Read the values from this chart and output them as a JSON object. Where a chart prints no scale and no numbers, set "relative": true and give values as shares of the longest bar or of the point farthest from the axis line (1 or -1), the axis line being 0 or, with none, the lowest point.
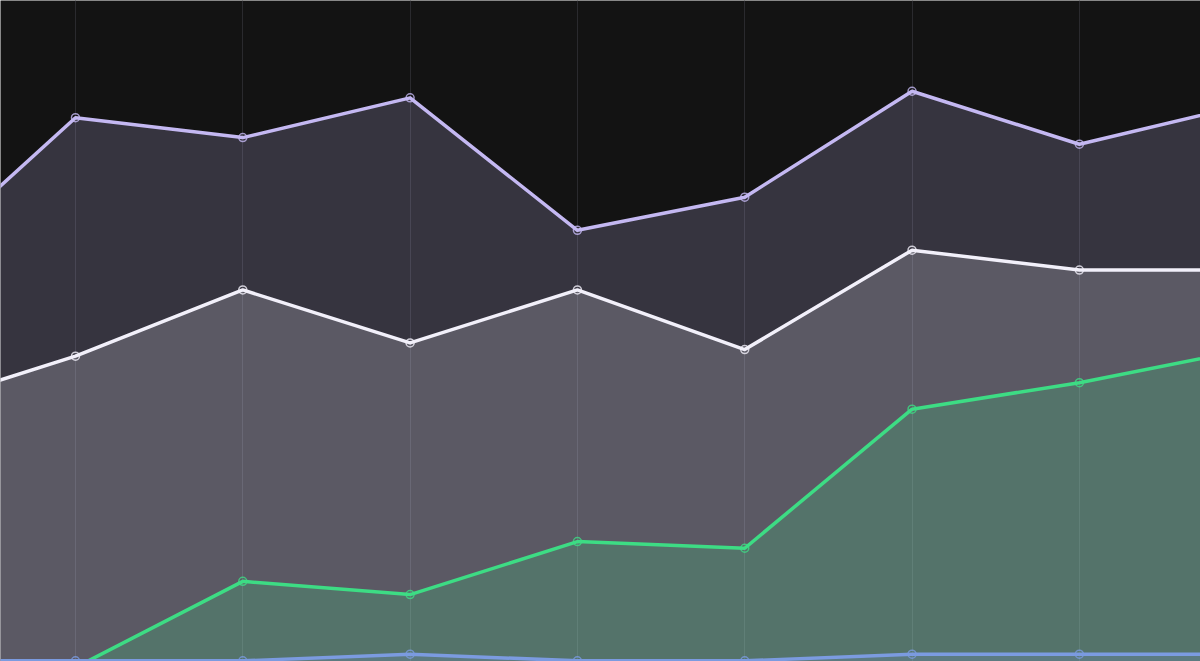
{
  "chart_data": {
    "type": "area",
    "relative": true,
    "categories": [
      null,
      null,
      null,
      null,
      null,
      null,
      null,
      null,
      null
    ],
    "grid": "x",
    "marker": "circle",
    "line_style": "solid",
    "series": [
      {
        "color": "#c4b8f2",
        "values": [
          0.73,
          0.96,
          0.93,
          0.99,
          0.79,
          0.84,
          1,
          0.92,
          0.98
        ]
      },
      {
        "color": "#f2f0fa",
        "values": [
          0.52,
          0.6,
          0.7,
          0.62,
          0.7,
          0.61,
          0.76,
          0.73,
          0.73
        ]
      },
      {
        "color": "#3ddc84",
        "values": [
          0,
          0.13,
          0.26,
          0.24,
          0.32,
          0.31,
          0.52,
          0.56,
          0.61
        ]
      },
      {
        "color": "#7b9be0",
        "values": [
          0.14,
          0.14,
          0.14,
          0.15,
          0.14,
          0.14,
          0.15,
          0.15,
          0.15
        ]
      }
    ]
  }
}
